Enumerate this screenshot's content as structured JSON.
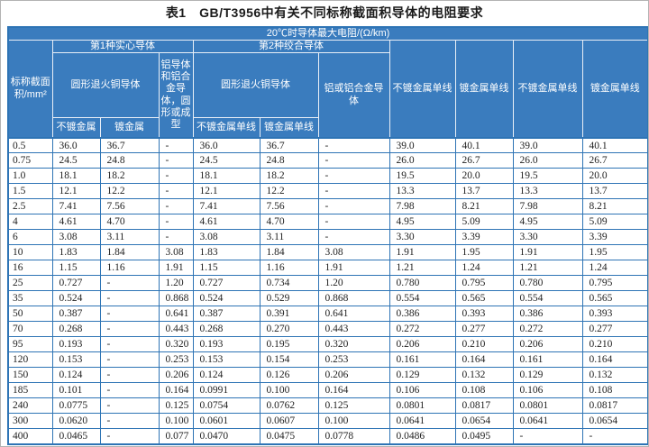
{
  "title": "表1　GB/T3956中有关不同标称截面积导体的电阻要求",
  "colors": {
    "header_fill": "#3a7cbe",
    "grid_line": "#2e74b5",
    "header_divider": "#e9eff7",
    "title_text": "#1a1a1a",
    "cell_text": "#222222"
  },
  "header": {
    "max_resistance": "20℃时导体最大电阻/(Ω/km)",
    "area": "标称截面积/mm²",
    "class1": "第1种实心导体",
    "class2": "第2种绞合导体",
    "round_annealed_copper_1": "圆形退火铜导体",
    "round_annealed_copper_2": "圆形退火铜导体",
    "aluminium_solid": "铝导体和铝合金导体，圆形或成型",
    "aluminium_stranded": "铝或铝合金导体",
    "solid_plain": "不镀金属",
    "solid_coated": "镀金属",
    "stranded_plain_wire": "不镀金属单线",
    "stranded_coated_wire": "镀金属单线",
    "trailing": [
      "不镀金属单线",
      "镀金属单线",
      "不镀金属单线",
      "镀金属单线"
    ]
  },
  "table": {
    "rows": [
      [
        "0.5",
        "36.0",
        "36.7",
        "-",
        "36.0",
        "36.7",
        "-",
        "39.0",
        "40.1",
        "39.0",
        "40.1"
      ],
      [
        "0.75",
        "24.5",
        "24.8",
        "-",
        "24.5",
        "24.8",
        "-",
        "26.0",
        "26.7",
        "26.0",
        "26.7"
      ],
      [
        "1.0",
        "18.1",
        "18.2",
        "-",
        "18.1",
        "18.2",
        "-",
        "19.5",
        "20.0",
        "19.5",
        "20.0"
      ],
      [
        "1.5",
        "12.1",
        "12.2",
        "-",
        "12.1",
        "12.2",
        "-",
        "13.3",
        "13.7",
        "13.3",
        "13.7"
      ],
      [
        "2.5",
        "7.41",
        "7.56",
        "-",
        "7.41",
        "7.56",
        "-",
        "7.98",
        "8.21",
        "7.98",
        "8.21"
      ],
      [
        "4",
        "4.61",
        "4.70",
        "-",
        "4.61",
        "4.70",
        "-",
        "4.95",
        "5.09",
        "4.95",
        "5.09"
      ],
      [
        "6",
        "3.08",
        "3.11",
        "-",
        "3.08",
        "3.11",
        "-",
        "3.30",
        "3.39",
        "3.30",
        "3.39"
      ],
      [
        "10",
        "1.83",
        "1.84",
        "3.08",
        "1.83",
        "1.84",
        "3.08",
        "1.91",
        "1.95",
        "1.91",
        "1.95"
      ],
      [
        "16",
        "1.15",
        "1.16",
        "1.91",
        "1.15",
        "1.16",
        "1.91",
        "1.21",
        "1.24",
        "1.21",
        "1.24"
      ],
      [
        "25",
        "0.727",
        "-",
        "1.20",
        "0.727",
        "0.734",
        "1.20",
        "0.780",
        "0.795",
        "0.780",
        "0.795"
      ],
      [
        "35",
        "0.524",
        "-",
        "0.868",
        "0.524",
        "0.529",
        "0.868",
        "0.554",
        "0.565",
        "0.554",
        "0.565"
      ],
      [
        "50",
        "0.387",
        "-",
        "0.641",
        "0.387",
        "0.391",
        "0.641",
        "0.386",
        "0.393",
        "0.386",
        "0.393"
      ],
      [
        "70",
        "0.268",
        "-",
        "0.443",
        "0.268",
        "0.270",
        "0.443",
        "0.272",
        "0.277",
        "0.272",
        "0.277"
      ],
      [
        "95",
        "0.193",
        "-",
        "0.320",
        "0.193",
        "0.195",
        "0.320",
        "0.206",
        "0.210",
        "0.206",
        "0.210"
      ],
      [
        "120",
        "0.153",
        "-",
        "0.253",
        "0.153",
        "0.154",
        "0.253",
        "0.161",
        "0.164",
        "0.161",
        "0.164"
      ],
      [
        "150",
        "0.124",
        "-",
        "0.206",
        "0.124",
        "0.126",
        "0.206",
        "0.129",
        "0.132",
        "0.129",
        "0.132"
      ],
      [
        "185",
        "0.101",
        "-",
        "0.164",
        "0.0991",
        "0.100",
        "0.164",
        "0.106",
        "0.108",
        "0.106",
        "0.108"
      ],
      [
        "240",
        "0.0775",
        "-",
        "0.125",
        "0.0754",
        "0.0762",
        "0.125",
        "0.0801",
        "0.0817",
        "0.0801",
        "0.0817"
      ],
      [
        "300",
        "0.0620",
        "-",
        "0.100",
        "0.0601",
        "0.0607",
        "0.100",
        "0.0641",
        "0.0654",
        "0.0641",
        "0.0654"
      ],
      [
        "400",
        "0.0465",
        "-",
        "0.077",
        "0.0470",
        "0.0475",
        "0.0778",
        "0.0486",
        "0.0495",
        "-",
        "-"
      ]
    ]
  }
}
